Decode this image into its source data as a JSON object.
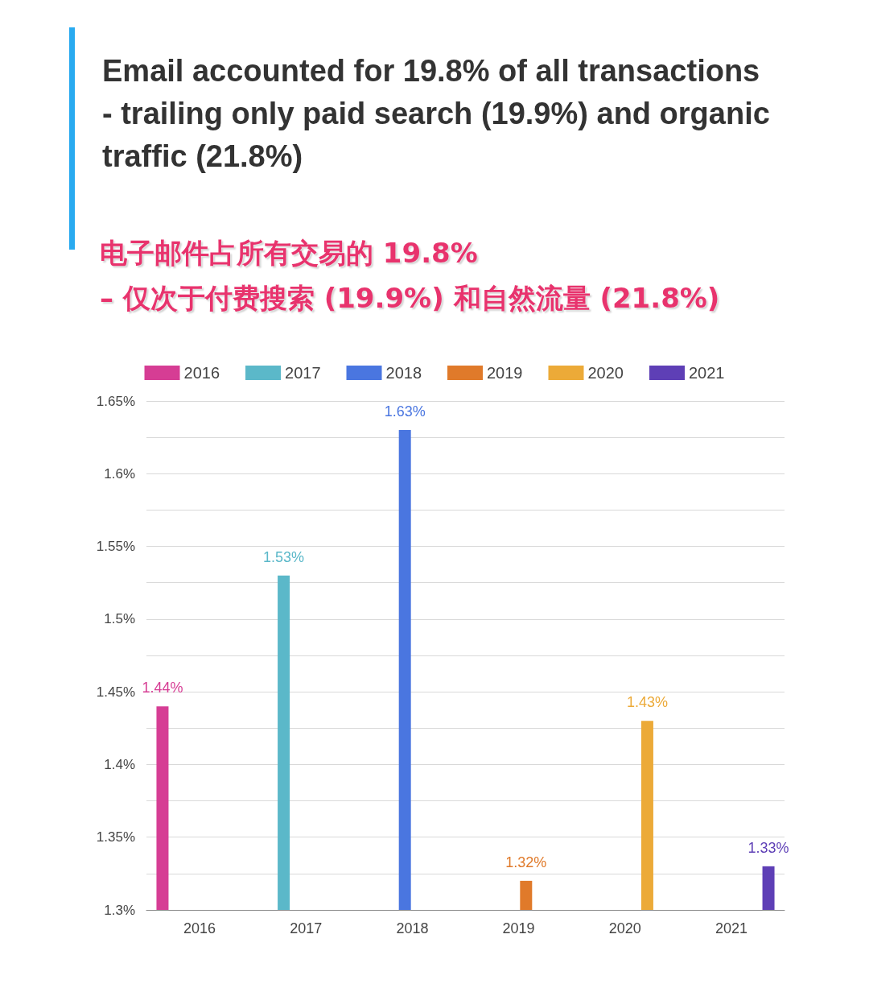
{
  "chart_data": {
    "type": "bar",
    "title": "Email accounted for 19.8% of all transactions - trailing only paid search (19.9%) and organic traffic (21.8%)",
    "subtitle": "电子邮件占所有交易的 19.8%\n– 仅次于付费搜索 (19.9%) 和自然流量 (21.8%)",
    "categories": [
      "2016",
      "2017",
      "2018",
      "2019",
      "2020",
      "2021"
    ],
    "series": [
      {
        "name": "2016",
        "color": "#d63d94",
        "values": [
          1.44,
          null,
          null,
          null,
          null,
          null
        ],
        "value_labels": [
          "1.44%",
          null,
          null,
          null,
          null,
          null
        ]
      },
      {
        "name": "2017",
        "color": "#5bb8c9",
        "values": [
          null,
          1.53,
          null,
          null,
          null,
          null
        ],
        "value_labels": [
          null,
          "1.53%",
          null,
          null,
          null,
          null
        ]
      },
      {
        "name": "2018",
        "color": "#4a76e0",
        "values": [
          null,
          null,
          1.63,
          null,
          null,
          null
        ],
        "value_labels": [
          null,
          null,
          "1.63%",
          null,
          null,
          null
        ]
      },
      {
        "name": "2019",
        "color": "#e07a2a",
        "values": [
          null,
          null,
          null,
          1.32,
          null,
          null
        ],
        "value_labels": [
          null,
          null,
          null,
          "1.32%",
          null,
          null
        ]
      },
      {
        "name": "2020",
        "color": "#ecaa38",
        "values": [
          null,
          null,
          null,
          null,
          1.43,
          null
        ],
        "value_labels": [
          null,
          null,
          null,
          null,
          "1.43%",
          null
        ]
      },
      {
        "name": "2021",
        "color": "#5e3fb6",
        "values": [
          null,
          null,
          null,
          null,
          null,
          1.33
        ],
        "value_labels": [
          null,
          null,
          null,
          null,
          null,
          "1.33%"
        ]
      }
    ],
    "ylim": [
      1.3,
      1.65
    ],
    "yticks": [
      {
        "value": 1.3,
        "label": "1.3%"
      },
      {
        "value": 1.325,
        "label": null
      },
      {
        "value": 1.35,
        "label": "1.35%"
      },
      {
        "value": 1.375,
        "label": null
      },
      {
        "value": 1.4,
        "label": "1.4%"
      },
      {
        "value": 1.425,
        "label": null
      },
      {
        "value": 1.45,
        "label": "1.45%"
      },
      {
        "value": 1.475,
        "label": null
      },
      {
        "value": 1.5,
        "label": "1.5%"
      },
      {
        "value": 1.525,
        "label": null
      },
      {
        "value": 1.55,
        "label": "1.55%"
      },
      {
        "value": 1.575,
        "label": null
      },
      {
        "value": 1.6,
        "label": "1.6%"
      },
      {
        "value": 1.625,
        "label": null
      },
      {
        "value": 1.65,
        "label": "1.65%"
      }
    ],
    "grid": "y",
    "legend": "top"
  }
}
